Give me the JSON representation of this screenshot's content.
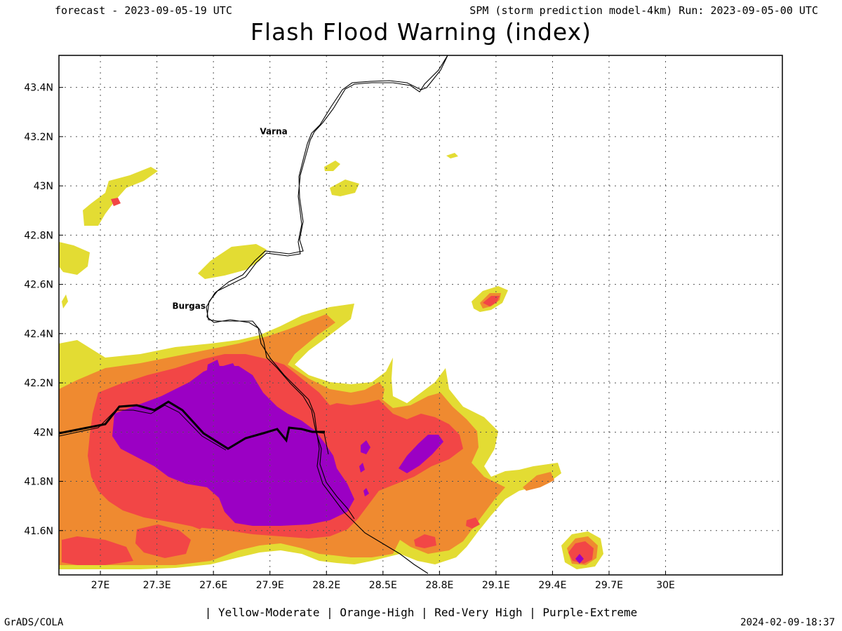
{
  "header": {
    "forecast": "forecast - 2023-09-05-19 UTC",
    "run": "SPM (storm prediction model-4km) Run: 2023-09-05-00 UTC",
    "title": "Flash Flood Warning (index)"
  },
  "legend": "| Yellow-Moderate | Orange-High | Red-Very High | Purple-Extreme",
  "footer": {
    "brand": "GrADS/COLA",
    "timestamp": "2024-02-09-18:37"
  },
  "levels": {
    "moderate": {
      "label": "Yellow-Moderate",
      "color": "#e3dc33"
    },
    "high": {
      "label": "Orange-High",
      "color": "#ef8a30"
    },
    "very_high": {
      "label": "Red-Very High",
      "color": "#f24646"
    },
    "extreme": {
      "label": "Purple-Extreme",
      "color": "#9b00c4"
    }
  },
  "map": {
    "lon_range": [
      26.78,
      30.62
    ],
    "lat_range": [
      41.42,
      43.53
    ],
    "x_ticks": [
      {
        "lon": 27.0,
        "label": "27E"
      },
      {
        "lon": 27.3,
        "label": "27.3E"
      },
      {
        "lon": 27.6,
        "label": "27.6E"
      },
      {
        "lon": 27.9,
        "label": "27.9E"
      },
      {
        "lon": 28.2,
        "label": "28.2E"
      },
      {
        "lon": 28.5,
        "label": "28.5E"
      },
      {
        "lon": 28.8,
        "label": "28.8E"
      },
      {
        "lon": 29.1,
        "label": "29.1E"
      },
      {
        "lon": 29.4,
        "label": "29.4E"
      },
      {
        "lon": 29.7,
        "label": "29.7E"
      },
      {
        "lon": 30.0,
        "label": "30E"
      }
    ],
    "y_ticks": [
      {
        "lat": 41.6,
        "label": "41.6N"
      },
      {
        "lat": 41.8,
        "label": "41.8N"
      },
      {
        "lat": 42.0,
        "label": "42N"
      },
      {
        "lat": 42.2,
        "label": "42.2N"
      },
      {
        "lat": 42.4,
        "label": "42.4N"
      },
      {
        "lat": 42.6,
        "label": "42.6N"
      },
      {
        "lat": 42.8,
        "label": "42.8N"
      },
      {
        "lat": 43.0,
        "label": "43N"
      },
      {
        "lat": 43.2,
        "label": "43.2N"
      },
      {
        "lat": 43.4,
        "label": "43.4N"
      }
    ],
    "cities": [
      {
        "name": "Varna",
        "lon": 27.92,
        "lat": 43.21
      },
      {
        "name": "Burgas",
        "lon": 27.47,
        "lat": 42.5
      }
    ],
    "grid": true
  }
}
